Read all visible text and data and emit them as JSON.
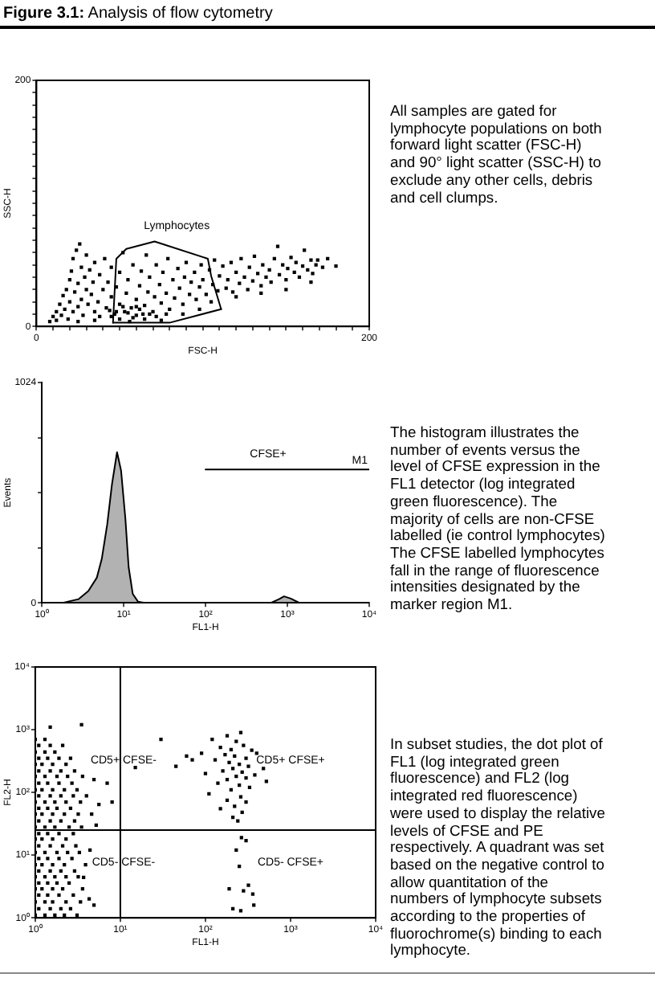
{
  "chart_data": [
    {
      "type": "scatter",
      "title": "Figure 3.1: Analysis of flow cytometry",
      "xlabel": "FSC-H",
      "ylabel": "SSC-H",
      "xlim": [
        0,
        200
      ],
      "ylim": [
        0,
        200
      ],
      "xticks": [
        0,
        {
          "value": 10,
          "label": null
        },
        {
          "value": 20,
          "label": null
        },
        {
          "value": 30,
          "label": null
        },
        {
          "value": 40,
          "label": null
        },
        {
          "value": 50,
          "label": null
        },
        {
          "value": 60,
          "label": null
        },
        {
          "value": 70,
          "label": null
        },
        {
          "value": 80,
          "label": null
        },
        {
          "value": 90,
          "label": null
        },
        {
          "value": 100,
          "label": null
        },
        {
          "value": 110,
          "label": null
        },
        {
          "value": 120,
          "label": null
        },
        {
          "value": 130,
          "label": null
        },
        {
          "value": 140,
          "label": null
        },
        {
          "value": 150,
          "label": null
        },
        {
          "value": 160,
          "label": null
        },
        {
          "value": 170,
          "label": null
        },
        {
          "value": 180,
          "label": null
        },
        {
          "value": 190,
          "label": null
        },
        200
      ],
      "yticks": [
        0,
        {
          "value": 10,
          "label": null
        },
        {
          "value": 20,
          "label": null
        },
        {
          "value": 30,
          "label": null
        },
        {
          "value": 40,
          "label": null
        },
        {
          "value": 50,
          "label": null
        },
        {
          "value": 60,
          "label": null
        },
        {
          "value": 70,
          "label": null
        },
        {
          "value": 80,
          "label": null
        },
        {
          "value": 90,
          "label": null
        },
        {
          "value": 100,
          "label": null
        },
        {
          "value": 110,
          "label": null
        },
        {
          "value": 120,
          "label": null
        },
        {
          "value": 130,
          "label": null
        },
        {
          "value": 140,
          "label": null
        },
        {
          "value": 150,
          "label": null
        },
        {
          "value": 160,
          "label": null
        },
        {
          "value": 170,
          "label": null
        },
        {
          "value": 180,
          "label": null
        },
        {
          "value": 190,
          "label": null
        },
        200
      ],
      "marker": "square",
      "series": [
        {
          "color": "#000000",
          "x": [
            8,
            10,
            12,
            12,
            14,
            15,
            16,
            17,
            18,
            19,
            20,
            20,
            21,
            22,
            22,
            23,
            24,
            25,
            25,
            26,
            27,
            27,
            28,
            29,
            30,
            30,
            31,
            32,
            33,
            34,
            35,
            35,
            37,
            38,
            38,
            40,
            41,
            42,
            43,
            45,
            45,
            47,
            48,
            50,
            50,
            52,
            53,
            54,
            55,
            57,
            58,
            60,
            60,
            62,
            63,
            65,
            66,
            67,
            68,
            70,
            71,
            72,
            74,
            75,
            76,
            78,
            79,
            80,
            82,
            83,
            85,
            86,
            88,
            89,
            90,
            92,
            93,
            95,
            96,
            98,
            99,
            100,
            102,
            104,
            106,
            107,
            109,
            110,
            112,
            114,
            115,
            117,
            118,
            120,
            122,
            123,
            125,
            127,
            128,
            130,
            131,
            133,
            135,
            136,
            138,
            140,
            141,
            143,
            145,
            146,
            148,
            150,
            151,
            153,
            155,
            156,
            158,
            160,
            161,
            163,
            165,
            166,
            168,
            169,
            172,
            175,
            180,
            45,
            50,
            55,
            58,
            62,
            65,
            68,
            72,
            75,
            78,
            44,
            52,
            56,
            60,
            48,
            64,
            105,
            120,
            135,
            150,
            165,
            88,
            98,
            35,
            25
          ],
          "values": [
            4,
            8,
            12,
            5,
            18,
            9,
            25,
            14,
            30,
            6,
            20,
            38,
            45,
            12,
            55,
            28,
            62,
            35,
            16,
            67,
            48,
            22,
            9,
            40,
            30,
            58,
            18,
            46,
            26,
            36,
            12,
            52,
            20,
            42,
            8,
            30,
            55,
            15,
            36,
            24,
            48,
            10,
            32,
            18,
            44,
            60,
            12,
            27,
            38,
            15,
            50,
            22,
            9,
            33,
            45,
            17,
            58,
            28,
            40,
            12,
            24,
            50,
            34,
            19,
            44,
            27,
            55,
            14,
            38,
            23,
            47,
            31,
            18,
            40,
            52,
            26,
            36,
            44,
            22,
            32,
            50,
            38,
            26,
            46,
            34,
            54,
            29,
            41,
            49,
            31,
            38,
            52,
            28,
            44,
            35,
            55,
            40,
            30,
            48,
            37,
            57,
            43,
            33,
            50,
            40,
            46,
            36,
            55,
            65,
            42,
            50,
            38,
            47,
            56,
            44,
            52,
            40,
            49,
            62,
            46,
            54,
            43,
            50,
            54,
            48,
            55,
            49,
            8,
            6,
            11,
            7,
            14,
            6,
            10,
            8,
            5,
            10,
            13,
            16,
            4,
            16,
            12,
            10,
            20,
            24,
            27,
            30,
            36,
            10,
            14,
            5,
            4
          ]
        },
        {
          "name": "Lymphocytes",
          "type": "line",
          "marker": "none",
          "color": "#000000",
          "x": [
            46,
            48,
            54,
            71,
            103,
            105,
            111
          ],
          "values": [
            3,
            55,
            63,
            69,
            55,
            41,
            14
          ]
        },
        {
          "type": "line",
          "marker": "none",
          "color": "#000000",
          "x": [
            46,
            80,
            111
          ],
          "values": [
            3,
            3,
            14
          ]
        }
      ],
      "annotations": [
        "All samples are gated for lymphocyte populations on both forward light scatter (FSC-H) and 90° light scatter (SSC-H) to exclude any other cells, debris and cell clumps."
      ]
    },
    {
      "type": "area",
      "xlabel": "FL1-H",
      "ylabel": "Events",
      "log": "x",
      "xlim": [
        1,
        10000
      ],
      "ylim": [
        0,
        1024
      ],
      "xticks": [
        {
          "value": 1,
          "label": "10⁰"
        },
        {
          "value": 10,
          "label": "10¹"
        },
        {
          "value": 100,
          "label": "10²"
        },
        {
          "value": 1000,
          "label": "10³"
        },
        {
          "value": 10000,
          "label": "10⁴"
        }
      ],
      "yticks": [
        0,
        {
          "value": 256,
          "label": null
        },
        {
          "value": 512,
          "label": null
        },
        {
          "value": 768,
          "label": null
        },
        1024
      ],
      "series": [
        {
          "color": "#000000",
          "x": [
            1,
            1.8,
            2.8,
            3.7,
            4.7,
            5.4,
            6.3,
            7.2,
            8.3,
            9.3,
            10.5,
            11.5,
            12.9,
            15,
            18,
            630,
            790,
            910,
            1100,
            1400,
            10000
          ],
          "values": [
            0,
            0,
            17,
            55,
            117,
            204,
            365,
            552,
            700,
            614,
            390,
            166,
            42,
            5,
            0,
            0,
            17,
            30,
            20,
            0,
            0
          ]
        },
        {
          "name": "M1",
          "type": "line",
          "color": "#000000",
          "x": [
            100,
            10000
          ],
          "values": [
            620,
            620
          ]
        }
      ],
      "annotations": [
        "CFSE+",
        "The histogram illustrates the number of events versus the level of CFSE expression in the FL1 detector (log integrated green fluorescence). The majority of cells are non-CFSE labelled (ie control lymphocytes) The CFSE labelled lymphocytes fall in the range of fluorescence intensities designated by the marker region M1."
      ]
    },
    {
      "type": "scatter",
      "xlabel": "FL1-H",
      "ylabel": "FL2-H",
      "log": "xy",
      "xlim": [
        1,
        10000
      ],
      "ylim": [
        1,
        10000
      ],
      "xticks": [
        {
          "value": 1,
          "label": "10⁰"
        },
        {
          "value": 10,
          "label": "10¹"
        },
        {
          "value": 100,
          "label": "10²"
        },
        {
          "value": 1000,
          "label": "10³"
        },
        {
          "value": 10000,
          "label": "10⁴"
        }
      ],
      "yticks": [
        {
          "value": 1,
          "label": "10⁰"
        },
        {
          "value": 10,
          "label": "10¹"
        },
        {
          "value": 100,
          "label": "10²"
        },
        {
          "value": 1000,
          "label": "10³"
        },
        {
          "value": 10000,
          "label": "10⁴"
        }
      ],
      "marker": "square",
      "ref_lines": [
        {
          "axis": "x",
          "value": 10
        },
        {
          "axis": "y",
          "value": 25
        }
      ],
      "series": [
        {
          "color": "#000000",
          "x": [
            1,
            1.3,
            1.7,
            2.2,
            3.1,
            1.1,
            1.5,
            2,
            2.6,
            1,
            1.3,
            1.6,
            2.3,
            3.4,
            1.1,
            1.4,
            1.9,
            2.8,
            1,
            1.2,
            1.6,
            2.1,
            3.6,
            1.1,
            1.4,
            1.8,
            2.5,
            1,
            1.3,
            1.7,
            2.3,
            3.2,
            1.1,
            1.5,
            2,
            2.9,
            1,
            1.2,
            1.6,
            2.2,
            3.9,
            1.1,
            1.4,
            1.9,
            2.7,
            1,
            1.3,
            1.8,
            2.4,
            3.3,
            1.1,
            1.5,
            2.1,
            3,
            1,
            1.2,
            1.6,
            2.3,
            1.1,
            1.4,
            1.9,
            2.8,
            1,
            1.3,
            1.7,
            2.5,
            3.5,
            1.1,
            1.5,
            2,
            2.9,
            1,
            1.2,
            1.6,
            2.2,
            3.2,
            4.6,
            1.1,
            1.4,
            1.8,
            2.6,
            1,
            1.3,
            1.7,
            2.3,
            3.4,
            1.1,
            1.5,
            2,
            2.8,
            4,
            1,
            1.2,
            1.6,
            2.2,
            3.1,
            1.1,
            1.4,
            1.9,
            2.7,
            1,
            1.3,
            1.8,
            2.4,
            3.6,
            1.1,
            1.5,
            2,
            2.9,
            1,
            1.2,
            1.6,
            2.3,
            1.1,
            1.4,
            1.9,
            2.6,
            1,
            1.3,
            1.7,
            1.1,
            1.5,
            2.1,
            1,
            1.3,
            3.5,
            1.5,
            4.9,
            7,
            8,
            5.6,
            4.3,
            4.9,
            3.7,
            4.4,
            5.2,
            15,
            30,
            45,
            60,
            70,
            120,
            180,
            230,
            260,
            150,
            200,
            280,
            350,
            90,
            170,
            220,
            300,
            400,
            130,
            190,
            250,
            320,
            210,
            160,
            270,
            230,
            300,
            180,
            380,
            140,
            250,
            200,
            330,
            110,
            260,
            180,
            300,
            220,
            150,
            270,
            210,
            240,
            480,
            520,
            100,
            265,
            300,
            230,
            250,
            320,
            190,
            280,
            360,
            370,
            210,
            260
          ],
          "values": [
            1.1,
            1.1,
            1.1,
            1.1,
            1.1,
            1.4,
            1.4,
            1.4,
            1.4,
            1.8,
            1.8,
            1.8,
            1.8,
            1.8,
            2.3,
            2.3,
            2.3,
            2.3,
            2.9,
            2.9,
            2.9,
            2.9,
            2.9,
            3.6,
            3.6,
            3.6,
            3.6,
            4.5,
            4.5,
            4.5,
            4.5,
            4.5,
            5.6,
            5.6,
            5.6,
            5.6,
            7,
            7,
            7,
            7,
            7,
            8.8,
            8.8,
            8.8,
            8.8,
            11,
            11,
            11,
            11,
            11,
            14,
            14,
            14,
            14,
            18,
            18,
            18,
            18,
            22,
            22,
            22,
            22,
            28,
            28,
            28,
            28,
            28,
            35,
            35,
            35,
            35,
            45,
            45,
            45,
            45,
            45,
            45,
            56,
            56,
            56,
            56,
            70,
            70,
            70,
            70,
            70,
            88,
            88,
            88,
            88,
            88,
            110,
            110,
            110,
            110,
            110,
            140,
            140,
            140,
            140,
            180,
            180,
            180,
            180,
            180,
            220,
            220,
            220,
            220,
            280,
            280,
            280,
            280,
            350,
            350,
            350,
            350,
            440,
            440,
            440,
            560,
            560,
            560,
            700,
            700,
            1200,
            1100,
            160,
            140,
            70,
            64,
            2,
            1.6,
            4.4,
            12,
            30,
            250,
            700,
            260,
            380,
            330,
            700,
            800,
            650,
            900,
            520,
            480,
            560,
            470,
            420,
            400,
            380,
            350,
            420,
            330,
            300,
            280,
            260,
            240,
            220,
            210,
            180,
            170,
            160,
            190,
            140,
            130,
            110,
            120,
            95,
            85,
            75,
            70,
            60,
            55,
            48,
            40,
            35,
            240,
            150,
            200,
            19,
            17,
            12,
            6.6,
            3.3,
            2.9,
            2.7,
            2.4,
            1.6,
            1.4,
            1.3
          ]
        }
      ],
      "annotations": [
        "CD5+ CFSE-",
        "CD5+ CFSE+",
        "CD5- CFSE-",
        "CD5- CFSE+",
        "In subset studies, the dot plot of FL1 (log integrated green fluorescence) and FL2 (log integrated red fluorescence) were used to display the relative levels of CFSE and PE respectively. A quadrant was set based on the negative control to allow quantitation of the numbers of lymphocyte subsets according to the properties of fluorochrome(s) binding to each lymphocyte."
      ]
    }
  ]
}
